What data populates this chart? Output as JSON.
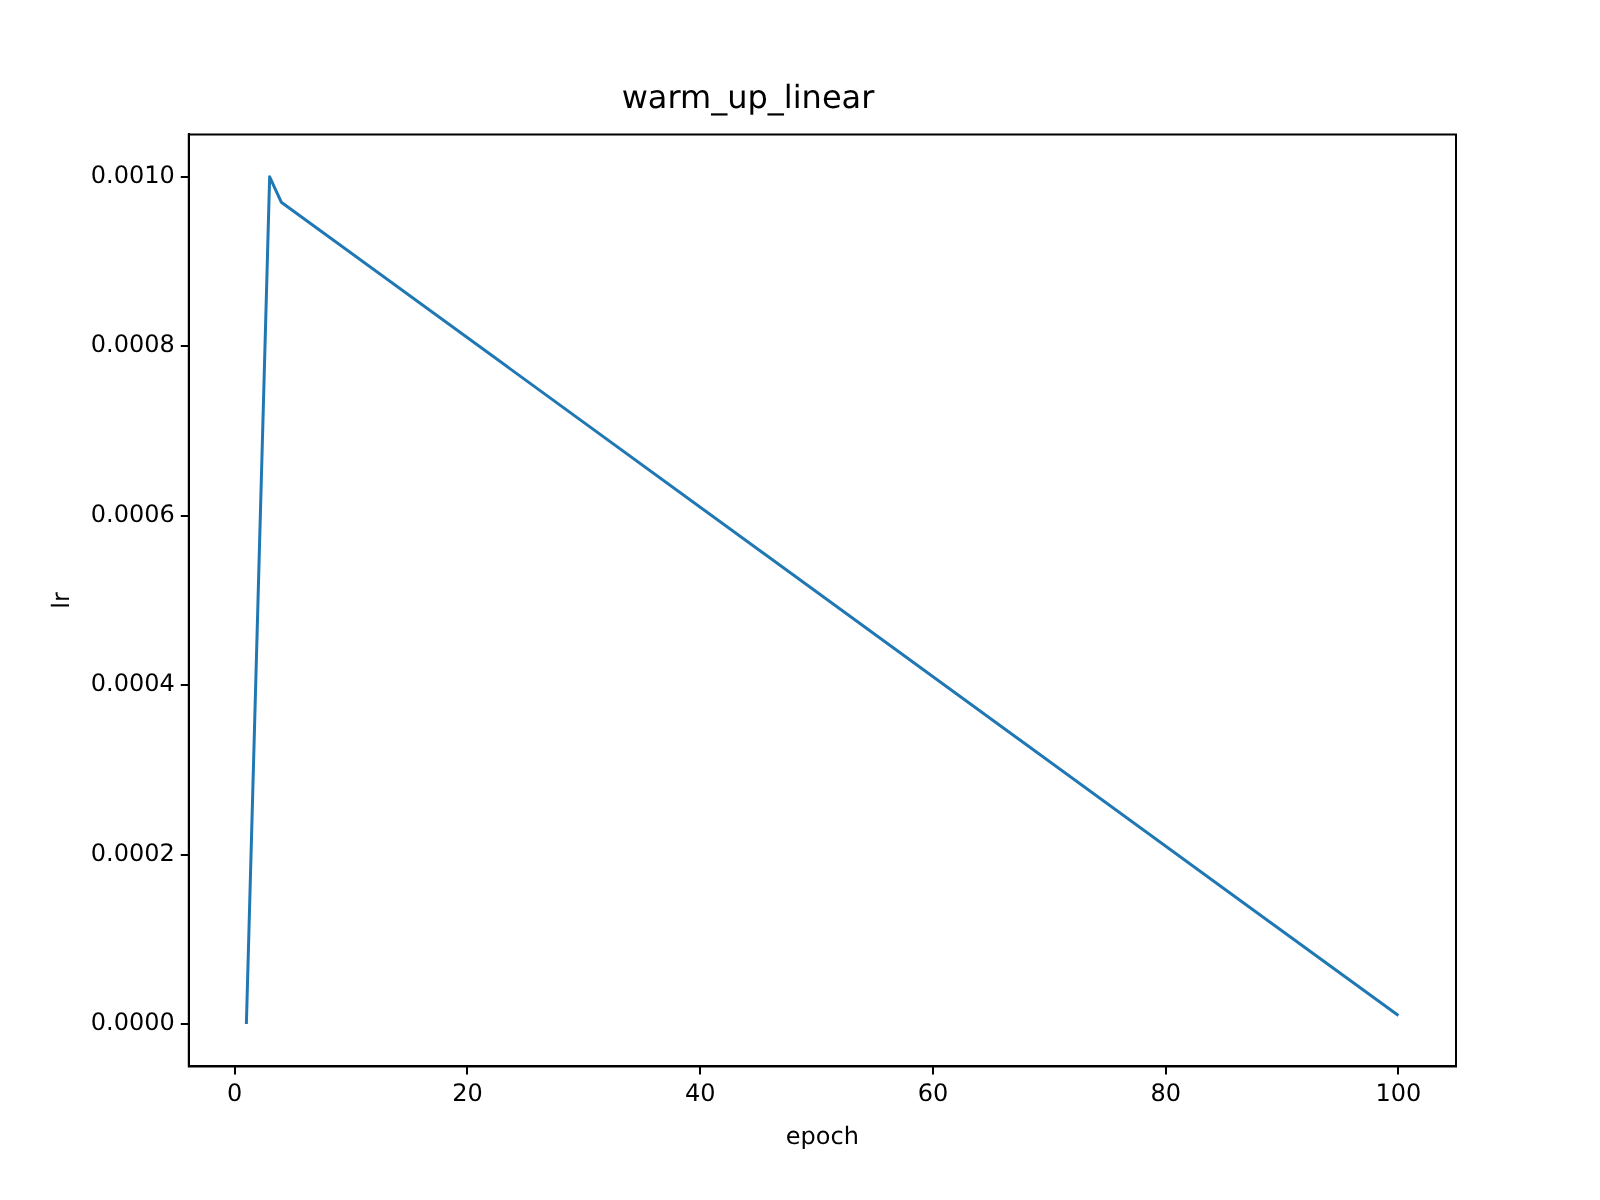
{
  "chart_data": {
    "type": "line",
    "title": "warm_up_linear",
    "xlabel": "epoch",
    "ylabel": "lr",
    "x": [
      1,
      2,
      3,
      4,
      100
    ],
    "series": [
      {
        "color": "#1f77b4",
        "values": [
          0,
          0.0005,
          0.001,
          0.00097,
          1e-05
        ]
      }
    ],
    "xlim": [
      -3.95,
      104.95
    ],
    "xticks": [
      0,
      20,
      40,
      60,
      80,
      100
    ],
    "ylim": [
      -5e-05,
      0.00105
    ],
    "yticks": [
      {
        "value": 0,
        "label": "0.0000"
      },
      {
        "value": 0.0002,
        "label": "0.0002"
      },
      {
        "value": 0.0004,
        "label": "0.0004"
      },
      {
        "value": 0.0006,
        "label": "0.0006"
      },
      {
        "value": 0.0008,
        "label": "0.0008"
      },
      {
        "value": 0.001,
        "label": "0.0010"
      }
    ],
    "grid": false,
    "legend": false,
    "marker": "none",
    "line_style": "solid"
  }
}
